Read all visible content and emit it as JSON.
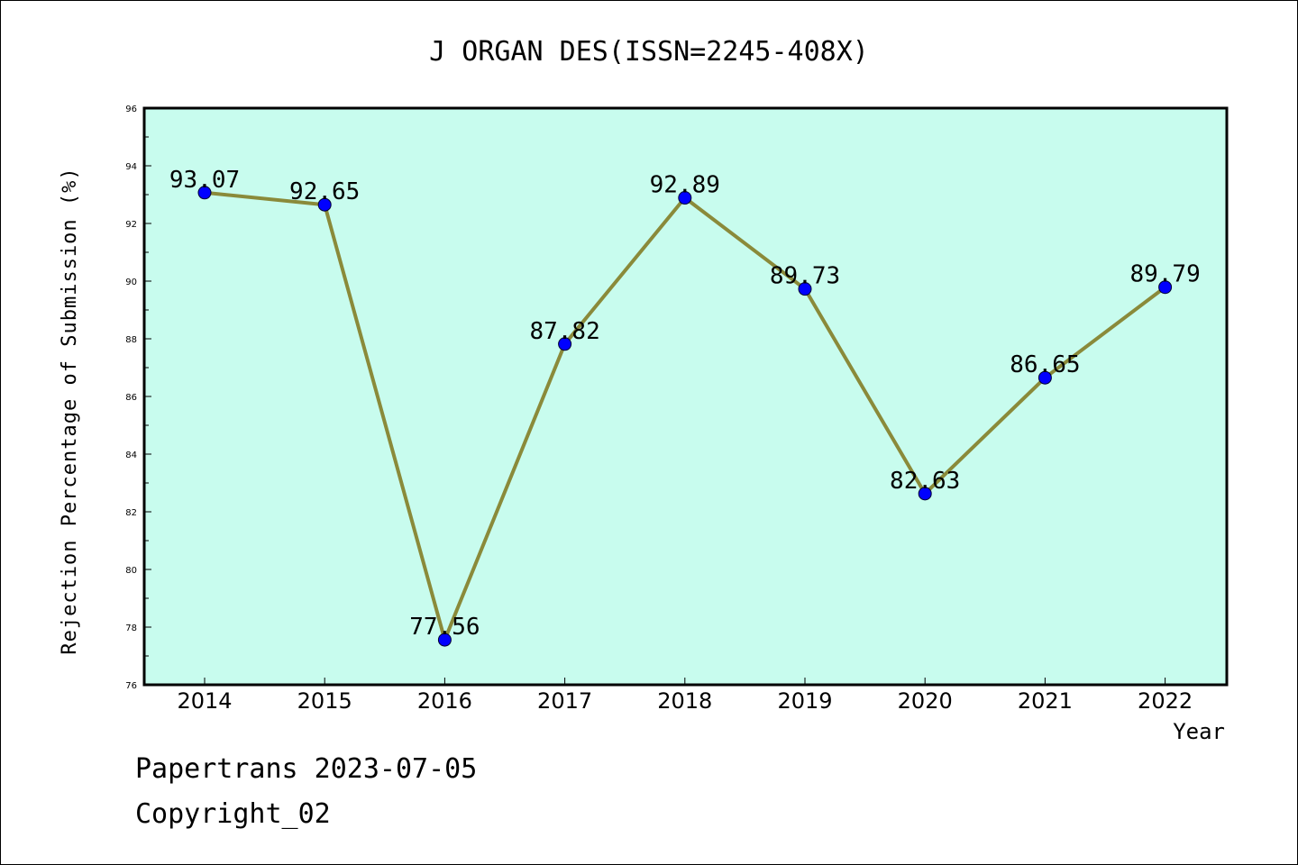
{
  "chart_data": {
    "type": "line",
    "title": "J ORGAN DES(ISSN=2245-408X)",
    "xlabel": "Year",
    "ylabel": "Rejection Percentage of Submission (%)",
    "categories": [
      "2014",
      "2015",
      "2016",
      "2017",
      "2018",
      "2019",
      "2020",
      "2021",
      "2022"
    ],
    "series": [
      {
        "values": [
          93.07,
          92.65,
          77.56,
          87.82,
          92.89,
          89.73,
          82.63,
          86.65,
          89.79
        ],
        "labels": [
          "93.07",
          "92.65",
          "77.56",
          "87.82",
          "92.89",
          "89.73",
          "82.63",
          "86.65",
          "89.79"
        ]
      }
    ],
    "ylim": [
      76,
      96
    ],
    "yticks": [
      "76",
      "78",
      "80",
      "82",
      "84",
      "86",
      "88",
      "90",
      "92",
      "94",
      "96"
    ],
    "grid": false,
    "colors": {
      "plot_background": "#c8fcee",
      "line": "#8a8a3a",
      "marker": "#0000ff"
    }
  },
  "footer": {
    "line1": "Papertrans 2023-07-05",
    "line2": "Copyright_02"
  }
}
